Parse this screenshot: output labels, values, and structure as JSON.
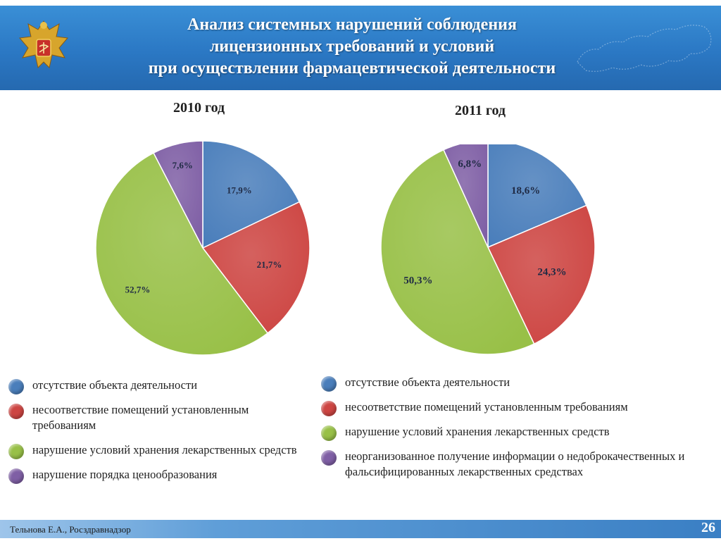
{
  "header": {
    "title_lines": [
      "Анализ системных нарушений соблюдения",
      "лицензионных требований и условий",
      "при осуществлении фармацевтической деятельности"
    ]
  },
  "chart_data": [
    {
      "type": "pie",
      "title": "2010 год",
      "categories": [
        "отсутствие объекта деятельности",
        "несоответствие помещений установленным требованиям",
        "нарушение условий хранения лекарственных средств",
        "нарушение порядка ценообразования"
      ],
      "values": [
        17.9,
        21.7,
        52.7,
        7.6
      ],
      "value_labels": [
        "17,9%",
        "21,7%",
        "52,7%",
        "7,6%"
      ],
      "colors": [
        "#4a7ebb",
        "#cd4542",
        "#98c047",
        "#7f5fa5"
      ],
      "legend": "bottom"
    },
    {
      "type": "pie",
      "title": "2011 год",
      "categories": [
        "отсутствие объекта деятельности",
        "несоответствие помещений установленным требованиям",
        "нарушение условий хранения лекарственных средств",
        "неорганизованное получение информации о недоброкачественных и фальсифицированных лекарственных средствах"
      ],
      "values": [
        18.6,
        24.3,
        50.3,
        6.8
      ],
      "value_labels": [
        "18,6%",
        "24,3%",
        "50,3%",
        "6,8%"
      ],
      "colors": [
        "#4a7ebb",
        "#cd4542",
        "#98c047",
        "#7f5fa5"
      ],
      "legend": "bottom"
    }
  ],
  "legend_2010": [
    {
      "text": "отсутствие объекта деятельности",
      "color": "#4a7ebb"
    },
    {
      "text": "несоответствие помещений установленным требованиям",
      "color": "#cd4542"
    },
    {
      "text": "нарушение условий хранения лекарственных средств",
      "color": "#98c047"
    },
    {
      "text": "нарушение порядка ценообразования",
      "color": "#7f5fa5"
    }
  ],
  "legend_2011": [
    {
      "text": "отсутствие объекта деятельности",
      "color": "#4a7ebb"
    },
    {
      "text": "несоответствие помещений установленным требованиям",
      "color": "#cd4542"
    },
    {
      "text": "нарушение условий хранения лекарственных средств",
      "color": "#98c047"
    },
    {
      "text": "неорганизованное получение информации о недоброкачественных и фальсифицированных лекарственных средствах",
      "color": "#7f5fa5"
    }
  ],
  "footer": {
    "author": "Тельнова Е.А., Росздравнадзор",
    "page_number": "26"
  }
}
